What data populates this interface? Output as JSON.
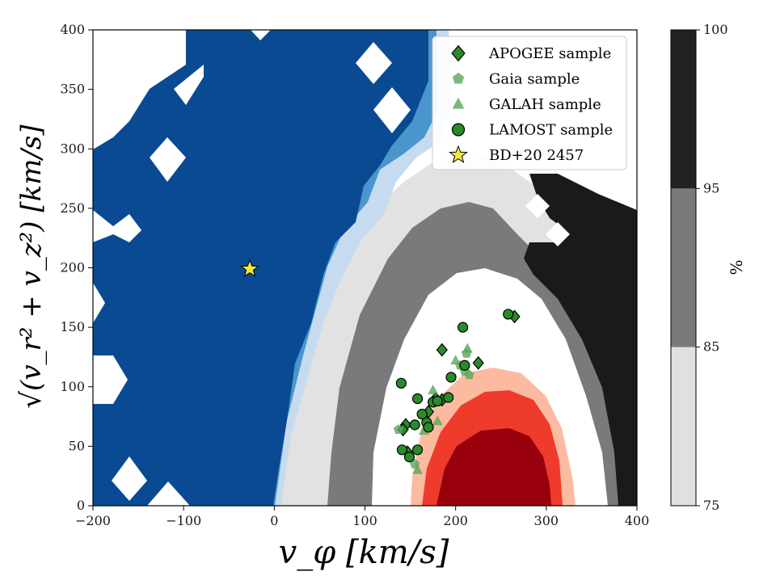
{
  "chart_data": {
    "type": "scatter",
    "xlabel": "v_φ [km/s]",
    "ylabel": "√(v_r² + v_z²) [km/s]",
    "xlim": [
      -200,
      400
    ],
    "ylim": [
      0,
      400
    ],
    "xticks": [
      "−200",
      "−100",
      "0",
      "100",
      "200",
      "300",
      "400"
    ],
    "yticks": [
      "0",
      "50",
      "100",
      "150",
      "200",
      "250",
      "300",
      "350",
      "400"
    ],
    "colorbar": {
      "label": "%",
      "ticks": [
        "75",
        "85",
        "95",
        "100"
      ],
      "levels": [
        {
          "from": 75,
          "to": 85,
          "color": "#e0e0e0"
        },
        {
          "from": 85,
          "to": 95,
          "color": "#7a7a7a"
        },
        {
          "from": 95,
          "to": 100,
          "color": "#222222"
        }
      ]
    },
    "legend": {
      "position": "top-right"
    },
    "colors": {
      "halo_dark": "#0a4a92",
      "halo_mid": "#4a96cc",
      "halo_light": "#c6dbef",
      "thick_light": "#e2e2e2",
      "thick_mid": "#7a7a7a",
      "thick_dark": "#1a1a1a",
      "thin_light": "#fcbba1",
      "thin_mid": "#ef3b2c",
      "thin_dark": "#99000d",
      "sample_green": "#2a8a2a",
      "sample_green_light": "#5aa85a",
      "star_yellow": "#f5e642"
    },
    "series": [
      {
        "name": "APOGEE sample",
        "marker": "diamond",
        "points": [
          {
            "x": 185,
            "y": 131
          },
          {
            "x": 265,
            "y": 159
          },
          {
            "x": 225,
            "y": 120
          },
          {
            "x": 185,
            "y": 89
          },
          {
            "x": 178,
            "y": 90
          },
          {
            "x": 145,
            "y": 68
          },
          {
            "x": 142,
            "y": 64
          },
          {
            "x": 147,
            "y": 45
          },
          {
            "x": 170,
            "y": 79
          }
        ]
      },
      {
        "name": "Gaia sample",
        "marker": "pentagon",
        "points": [
          {
            "x": 137,
            "y": 64
          },
          {
            "x": 215,
            "y": 110
          },
          {
            "x": 210,
            "y": 113
          },
          {
            "x": 205,
            "y": 118
          },
          {
            "x": 212,
            "y": 128
          },
          {
            "x": 155,
            "y": 35
          }
        ]
      },
      {
        "name": "GALAH sample",
        "marker": "triangle",
        "points": [
          {
            "x": 175,
            "y": 97
          },
          {
            "x": 180,
            "y": 71
          },
          {
            "x": 200,
            "y": 122
          },
          {
            "x": 213,
            "y": 132
          },
          {
            "x": 158,
            "y": 30
          },
          {
            "x": 165,
            "y": 63
          }
        ]
      },
      {
        "name": "LAMOST sample",
        "marker": "circle",
        "points": [
          {
            "x": 140,
            "y": 103
          },
          {
            "x": 208,
            "y": 150
          },
          {
            "x": 258,
            "y": 161
          },
          {
            "x": 158,
            "y": 90
          },
          {
            "x": 168,
            "y": 70
          },
          {
            "x": 170,
            "y": 66
          },
          {
            "x": 175,
            "y": 87
          },
          {
            "x": 180,
            "y": 88
          },
          {
            "x": 192,
            "y": 91
          },
          {
            "x": 141,
            "y": 47
          },
          {
            "x": 149,
            "y": 41
          },
          {
            "x": 158,
            "y": 47
          },
          {
            "x": 195,
            "y": 108
          },
          {
            "x": 210,
            "y": 118
          },
          {
            "x": 163,
            "y": 77
          },
          {
            "x": 155,
            "y": 68
          }
        ]
      },
      {
        "name": "BD+20 2457",
        "marker": "star",
        "points": [
          {
            "x": -27,
            "y": 199
          }
        ]
      }
    ]
  }
}
